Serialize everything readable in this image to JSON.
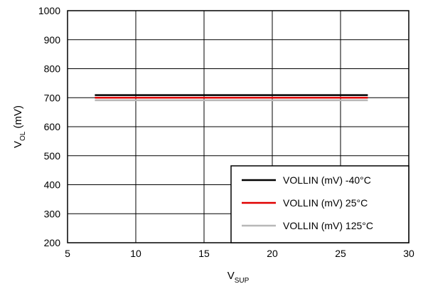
{
  "chart_data": {
    "type": "line",
    "xlabel": {
      "main": "V",
      "sub": "SUP"
    },
    "ylabel": {
      "main": "V",
      "sub": "OL",
      "unit": " (mV)"
    },
    "xlim": [
      5,
      30
    ],
    "ylim": [
      200,
      1000
    ],
    "xticks": [
      5,
      10,
      15,
      20,
      25,
      30
    ],
    "yticks": [
      200,
      300,
      400,
      500,
      600,
      700,
      800,
      900,
      1000
    ],
    "grid": true,
    "legend_position": "bottom-right",
    "series": [
      {
        "name": "VOLLIN (mV) -40°C",
        "color": "#000000",
        "x": [
          7,
          27
        ],
        "y": [
          709,
          709
        ]
      },
      {
        "name": "VOLLIN (mV) 25°C",
        "color": "#e00000",
        "x": [
          7,
          27
        ],
        "y": [
          700,
          700
        ]
      },
      {
        "name": "VOLLIN (mV) 125°C",
        "color": "#b8b8b8",
        "x": [
          7,
          27
        ],
        "y": [
          691,
          691
        ]
      }
    ]
  }
}
